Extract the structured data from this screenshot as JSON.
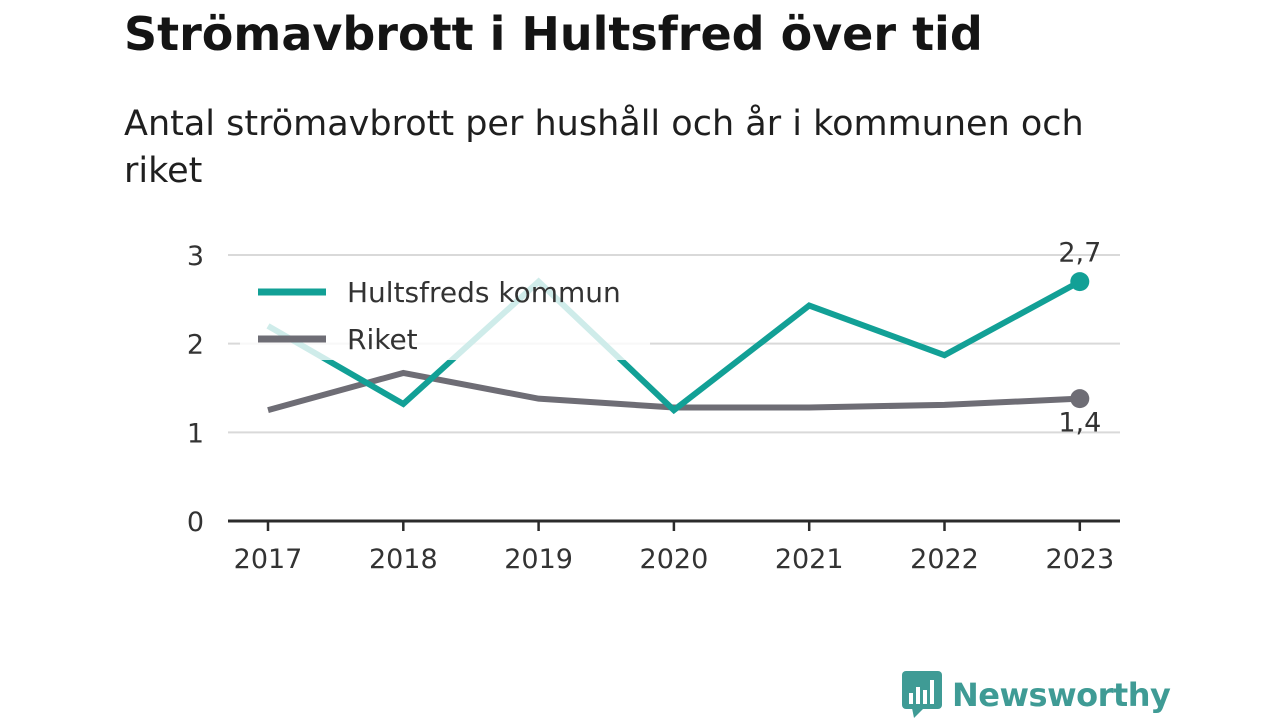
{
  "header": {
    "title": "Strömavbrott i Hultsfred över tid",
    "subtitle": "Antal strömavbrott per hushåll och år i kommunen och riket"
  },
  "brand": {
    "name": "Newsworthy",
    "icon": "bar-chart-speech-bubble-icon",
    "color": "#3f9b95"
  },
  "chart_data": {
    "type": "line",
    "x": [
      "2017",
      "2018",
      "2019",
      "2020",
      "2021",
      "2022",
      "2023"
    ],
    "ylim": [
      0,
      3
    ],
    "yticks": [
      0,
      1,
      2,
      3
    ],
    "grid": true,
    "legend_position": "top-left",
    "series": [
      {
        "name": "Hultsfreds kommun",
        "color": "#12a096",
        "values": [
          2.2,
          1.32,
          2.7,
          1.25,
          2.43,
          1.87,
          2.7
        ],
        "end_label": "2,7"
      },
      {
        "name": "Riket",
        "color": "#6e6d75",
        "values": [
          1.25,
          1.67,
          1.38,
          1.28,
          1.28,
          1.31,
          1.38
        ],
        "end_label": "1,4"
      }
    ]
  }
}
